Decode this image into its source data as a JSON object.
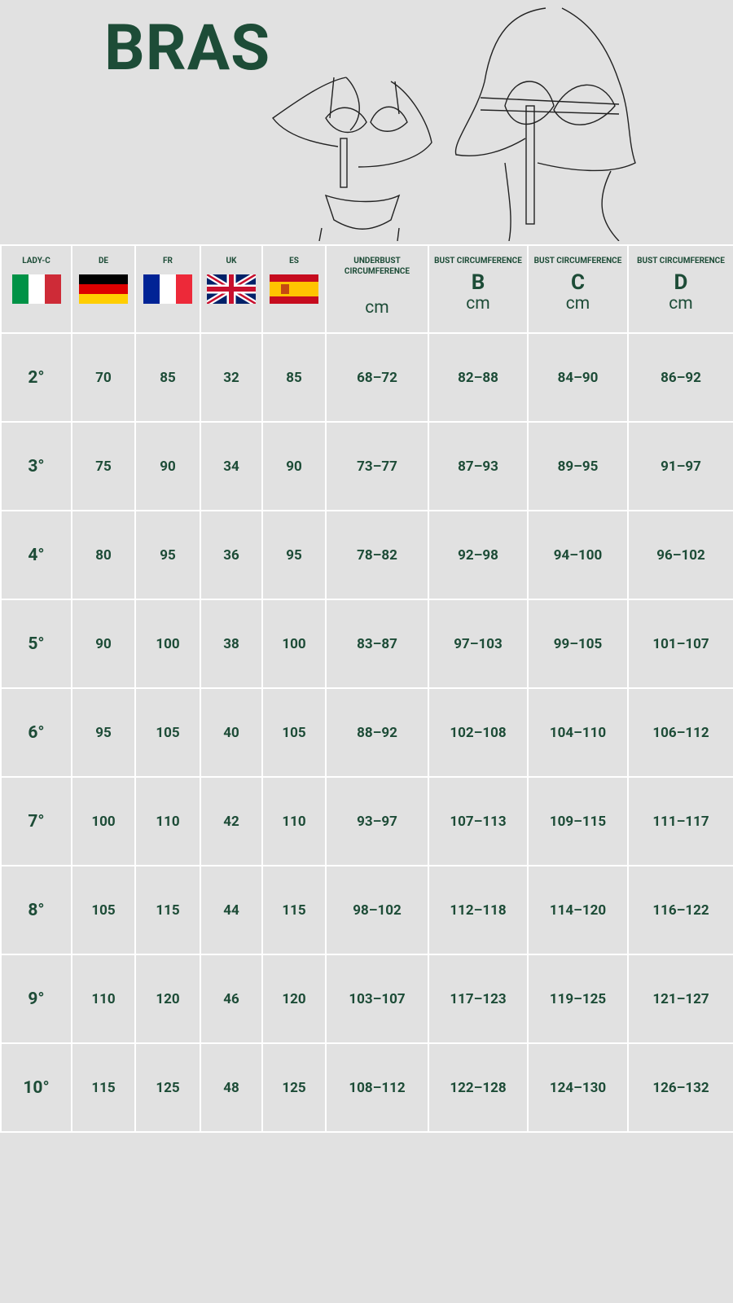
{
  "title": "BRAS",
  "table": {
    "columns": [
      {
        "label": "LADY-C"
      },
      {
        "label": "DE"
      },
      {
        "label": "FR"
      },
      {
        "label": "UK"
      },
      {
        "label": "ES"
      },
      {
        "label": "UNDERBUST CIRCUMFERENCE",
        "unit": "cm"
      },
      {
        "label": "BUST CIRCUMFERENCE",
        "cup": "B",
        "unit": "cm"
      },
      {
        "label": "BUST CIRCUMFERENCE",
        "cup": "C",
        "unit": "cm"
      },
      {
        "label": "BUST CIRCUMFERENCE",
        "cup": "D",
        "unit": "cm"
      }
    ],
    "rows": [
      [
        "2°",
        "70",
        "85",
        "32",
        "85",
        "68–72",
        "82–88",
        "84–90",
        "86–92"
      ],
      [
        "3°",
        "75",
        "90",
        "34",
        "90",
        "73–77",
        "87–93",
        "89–95",
        "91–97"
      ],
      [
        "4°",
        "80",
        "95",
        "36",
        "95",
        "78–82",
        "92–98",
        "94–100",
        "96–102"
      ],
      [
        "5°",
        "90",
        "100",
        "38",
        "100",
        "83–87",
        "97–103",
        "99–105",
        "101–107"
      ],
      [
        "6°",
        "95",
        "105",
        "40",
        "105",
        "88–92",
        "102–108",
        "104–110",
        "106–112"
      ],
      [
        "7°",
        "100",
        "110",
        "42",
        "110",
        "93–97",
        "107–113",
        "109–115",
        "111–117"
      ],
      [
        "8°",
        "105",
        "115",
        "44",
        "115",
        "98–102",
        "112–118",
        "114–120",
        "116–122"
      ],
      [
        "9°",
        "110",
        "120",
        "46",
        "120",
        "103–107",
        "117–123",
        "119–125",
        "121–127"
      ],
      [
        "10°",
        "115",
        "125",
        "48",
        "125",
        "108–112",
        "122–128",
        "124–130",
        "126–132"
      ]
    ]
  }
}
